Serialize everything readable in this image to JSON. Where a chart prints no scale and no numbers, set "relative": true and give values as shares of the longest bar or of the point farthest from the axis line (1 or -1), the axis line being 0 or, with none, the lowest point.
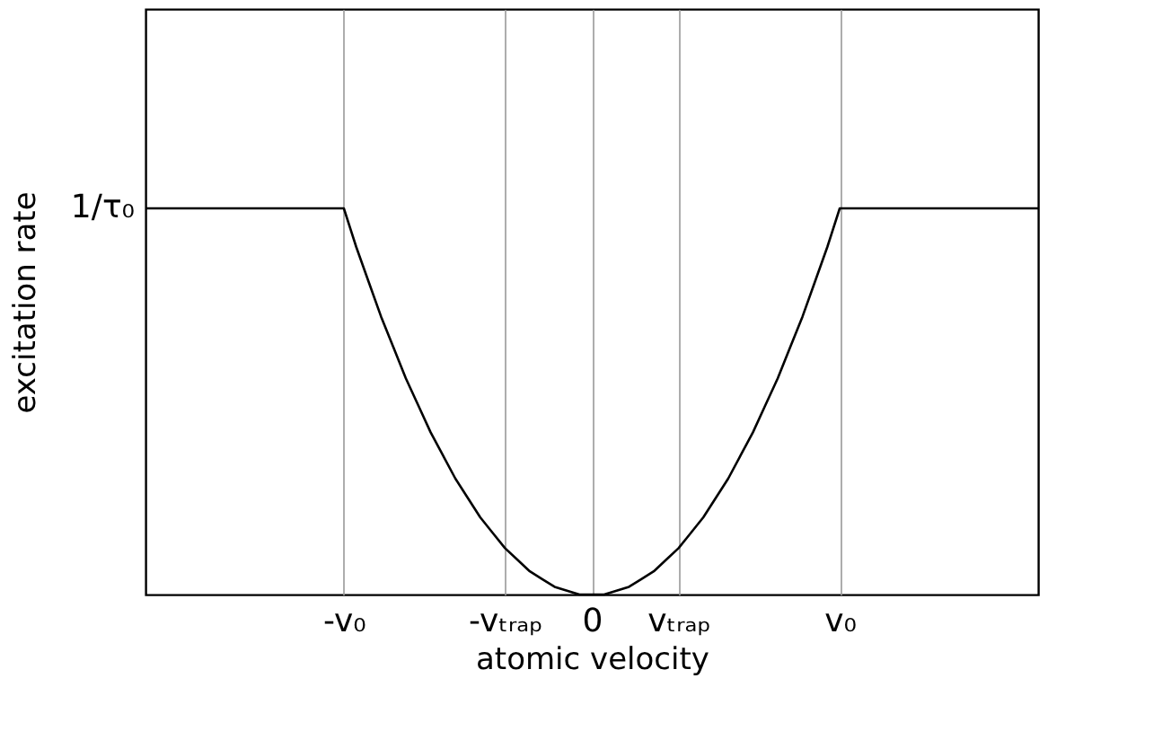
{
  "chart_data": {
    "type": "line",
    "xlabel": "atomic velocity",
    "ylabel": "excitation rate",
    "relative": true,
    "categories": [
      null,
      null,
      null,
      null,
      null,
      null,
      null,
      null,
      null,
      null,
      null,
      null,
      null,
      null,
      null,
      null,
      "-v₀",
      null,
      null,
      null,
      null,
      null,
      null,
      null,
      null,
      null,
      null,
      null,
      null,
      "-vₜᵣₐₚ",
      null,
      null,
      null,
      null,
      null,
      null,
      "0",
      null,
      null,
      null,
      null,
      null,
      null,
      "vₜᵣₐₚ",
      null,
      null,
      null,
      null,
      null,
      null,
      null,
      null,
      null,
      null,
      null,
      null,
      "v₀",
      null,
      null,
      null,
      null,
      null,
      null,
      null,
      null,
      null,
      null,
      null,
      null,
      null,
      null,
      null,
      null
    ],
    "series": [
      {
        "color": "#000000",
        "values": [
          1,
          1,
          1,
          1,
          1,
          1,
          1,
          1,
          1,
          1,
          1,
          1,
          1,
          1,
          1,
          1,
          1,
          0.9,
          0.81,
          0.72,
          0.64,
          0.56,
          0.49,
          0.42,
          0.36,
          0.3,
          0.25,
          0.2,
          0.16,
          0.12,
          0.09,
          0.06,
          0.04,
          0.02,
          0.01,
          0.0,
          0,
          0.0,
          0.01,
          0.02,
          0.04,
          0.06,
          0.09,
          0.12,
          0.16,
          0.2,
          0.25,
          0.3,
          0.36,
          0.42,
          0.49,
          0.56,
          0.64,
          0.72,
          0.81,
          0.9,
          1,
          1,
          1,
          1,
          1,
          1,
          1,
          1,
          1,
          1,
          1,
          1,
          1,
          1,
          1,
          1,
          1
        ]
      }
    ],
    "annotations": [
      "1/τ₀"
    ],
    "grid": "x",
    "line_style": "solid",
    "marker": "none",
    "legend": false
  }
}
